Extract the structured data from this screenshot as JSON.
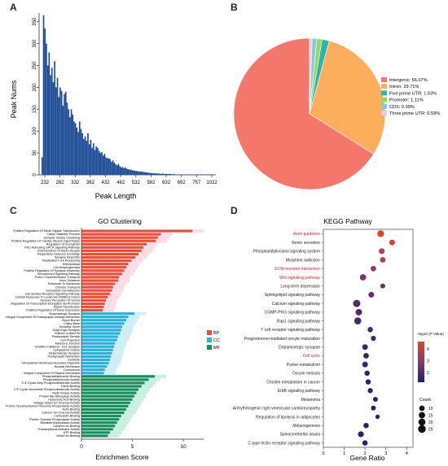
{
  "panel_labels": [
    "A",
    "B",
    "C",
    "D"
  ],
  "chart_data": [
    {
      "type": "bar",
      "panel": "A",
      "xlabel": "Peak Length",
      "ylabel": "Peak Nums",
      "ylim": [
        0,
        370
      ],
      "yticks": [
        0,
        50,
        100,
        150,
        200,
        250,
        300,
        350
      ],
      "xticks": [
        "232",
        "282",
        "332",
        "382",
        "432",
        "482",
        "532",
        "582",
        "632",
        "692",
        "757",
        "1022"
      ],
      "bin_start": 220,
      "bin_width": 4,
      "color": "#1f4e96",
      "values": [
        40,
        365,
        335,
        300,
        250,
        280,
        228,
        245,
        212,
        260,
        200,
        222,
        178,
        200,
        192,
        158,
        185,
        190,
        165,
        150,
        132,
        150,
        138,
        122,
        118,
        108,
        98,
        122,
        105,
        95,
        82,
        88,
        78,
        95,
        70,
        80,
        62,
        72,
        57,
        65,
        62,
        55,
        50,
        52,
        44,
        48,
        40,
        38,
        38,
        36,
        30,
        33,
        28,
        24,
        22,
        25,
        20,
        17,
        18,
        15,
        17,
        14,
        13,
        12,
        12,
        10,
        10,
        9,
        9,
        8,
        8,
        8,
        7,
        7,
        6,
        6,
        5,
        5,
        4,
        4,
        4,
        3,
        4,
        3,
        3,
        3,
        2,
        3,
        2,
        2,
        2,
        2,
        2,
        2,
        1,
        2,
        1,
        1,
        1,
        1,
        1,
        1,
        1,
        1,
        1,
        1,
        1,
        1,
        1,
        1,
        1,
        1,
        1,
        1,
        1,
        1,
        1,
        1,
        1,
        1,
        1,
        1,
        1,
        1
      ]
    },
    {
      "type": "pie",
      "panel": "B",
      "legend_position": "right",
      "slices": [
        {
          "label": "Intergenic: 66.07%",
          "value": 66.07,
          "color": "#f4776b"
        },
        {
          "label": "Intron: 29.71%",
          "value": 29.71,
          "color": "#fcae5d"
        },
        {
          "label": "Five prime UTR: 1.53%",
          "value": 1.53,
          "color": "#2fb5a9"
        },
        {
          "label": "Promoter: 1.11%",
          "value": 1.11,
          "color": "#9bd662"
        },
        {
          "label": "CDS: 0.99%",
          "value": 0.99,
          "color": "#7fcbe0"
        },
        {
          "label": "Three prime UTR: 0.59%",
          "value": 0.59,
          "color": "#f7c7df"
        }
      ]
    },
    {
      "type": "bar",
      "panel": "C",
      "orientation": "horizontal",
      "title": "GO Clustering",
      "xlabel": "Enrichmen Score",
      "xlim": [
        0,
        12
      ],
      "xticks": [
        0,
        5,
        10
      ],
      "legend_position": "right",
      "series": [
        {
          "name": "BP",
          "color": "#e8503a",
          "bands": "#fcdde6",
          "categories": [
            "Positive Regulation Of Small Gtpase Transduction",
            "Camp Catabolic Process",
            "Synaptic Vesicle Clustering",
            "Positive Regulation Of Cardiac Muscle Hypertrophy",
            "Regulation Of Exocytosis",
            "PKC-Activating GPCR Signaling Pathway",
            "Determination Of Adult Lifespan",
            "Respiratory Gaseous Exchange",
            "Synapse Assembly",
            "Replication Fork Processing",
            "Hemopoiesis",
            "Cell Morphogenesis",
            "Positive Regulation Of Synapse Assembly",
            "Smoothened Signaling Pathway",
            "Proton Transmembrane Transport",
            "Axon Guidance",
            "Response To Bacterium",
            "Chloride Transport",
            "Homophilic Cell Adhesion",
            "Cell Surface Receptor Signaling Pathway",
            "Cellular Response To Leukemia Inhibitory Factor",
            "Sensory Perception Of Sound",
            "Regulation Of Transcription Elongation By Promoter",
            "Signal Transduction",
            "Positive Regulation Of Gene Expression"
          ],
          "values": [
            10.9,
            7.8,
            7.5,
            7.3,
            6.4,
            6.1,
            5.9,
            5.6,
            5.3,
            4.9,
            4.6,
            4.4,
            4.2,
            4.0,
            3.7,
            3.6,
            3.3,
            3.1,
            3.0,
            2.8,
            2.6,
            2.4,
            2.3,
            2.2,
            2.1
          ]
        },
        {
          "name": "CC",
          "color": "#2bb0d8",
          "bands": "#cdeef7",
          "categories": [
            "Glutamatergic Synapse",
            "Integral Component Of Postsynaptic Density Membrane",
            "Brush Border",
            "Ciliary Base",
            "Dendritic Spine",
            "Golgi-Ergic Synapse",
            "Clathrin-Coated Pit",
            "Postsynaptic Density",
            "Cell Projection",
            "Adherens Junction",
            "Schaffer Collateral - Ca1 Synapse",
            "Cytoplasmic Vesicle",
            "Glutamatergic Synapse",
            "Postsynaptic Membrane",
            "Centriole",
            "Intracellular Membrane-Bounded Organelle",
            "Nuclear Membrane",
            "Centrosome",
            "Integral Component Of Plasma Membrane"
          ],
          "values": [
            5.2,
            4.6,
            4.4,
            4.2,
            4.0,
            3.9,
            3.8,
            3.6,
            3.5,
            3.3,
            3.2,
            3.1,
            3.0,
            2.9,
            2.8,
            2.7,
            2.5,
            2.3,
            2.2
          ]
        },
        {
          "name": "MF",
          "color": "#1d8c5c",
          "bands": "#c9efe0",
          "categories": [
            "Phosphatidylinositol Binding",
            "Phosphatidylinositol Activity",
            "3',5'-Cyclic-Amp Phosphodiesterase Activity",
            "Camp Binding",
            "3',5'-Cyclic-Nucleotide Phosphodiesterase Activity",
            "Nadh Kinase Activity",
            "Protein Atp-Ribosylase Activity",
            "Hyaluronic Acid Binding",
            "Voltage-Gated Ion Channel Activity",
            "Protein Tyrosine/Serine/Threonine Phosphatase Activity",
            "Actin Binding",
            "Calcium Ion Channel Activity",
            "Calmodulin Binding",
            "Protein Tyrosine Phosphatase Activity",
            "Metalloendopeptidase Activity",
            "Calcium Ion Binding",
            "Transcriptional Activator Activity",
            "ATP Binding",
            "Metal Ion Binding"
          ],
          "values": [
            7.2,
            6.6,
            6.2,
            5.9,
            5.6,
            5.4,
            5.2,
            5.0,
            4.8,
            4.6,
            4.4,
            4.2,
            3.9,
            3.7,
            3.5,
            3.3,
            3.1,
            2.8,
            2.6
          ]
        }
      ]
    },
    {
      "type": "scatter",
      "panel": "D",
      "title": "KEGG Pathway",
      "xlabel": "Gene Ratio",
      "xlim": [
        0,
        4.3
      ],
      "xticks": [
        0,
        1,
        2,
        3,
        4
      ],
      "color_legend_title": "−log10 (P Value)",
      "color_ticks": [
        2,
        3,
        4
      ],
      "size_legend_title": "Count",
      "size_legend": [
        10,
        15,
        20,
        25
      ],
      "points": [
        {
          "pathway": "Axon guidance",
          "x": 2.75,
          "p": 4.6,
          "count": 18,
          "highlight": true
        },
        {
          "pathway": "Renin secretion",
          "x": 3.3,
          "p": 4.4,
          "count": 11,
          "highlight": false
        },
        {
          "pathway": "Phosphatidylinositol signaling system",
          "x": 2.8,
          "p": 3.9,
          "count": 12,
          "highlight": false
        },
        {
          "pathway": "Morphine addiction",
          "x": 2.85,
          "p": 3.7,
          "count": 10,
          "highlight": false
        },
        {
          "pathway": "ECM-receptor interaction",
          "x": 2.4,
          "p": 3.0,
          "count": 10,
          "highlight": true
        },
        {
          "pathway": "Wnt signaling pathway",
          "x": 1.9,
          "p": 2.8,
          "count": 15,
          "highlight": true
        },
        {
          "pathway": "Long-term depression",
          "x": 2.85,
          "p": 2.5,
          "count": 7,
          "highlight": false
        },
        {
          "pathway": "Sphingolipid signaling pathway",
          "x": 2.3,
          "p": 2.3,
          "count": 11,
          "highlight": false
        },
        {
          "pathway": "Calcium signaling pathway",
          "x": 1.6,
          "p": 2.1,
          "count": 22,
          "highlight": false
        },
        {
          "pathway": "CGMP-PKG signaling pathway",
          "x": 1.7,
          "p": 2.0,
          "count": 16,
          "highlight": false
        },
        {
          "pathway": "Rap1 signaling pathway",
          "x": 1.65,
          "p": 1.9,
          "count": 20,
          "highlight": false
        },
        {
          "pathway": "T cell receptor signaling pathway",
          "x": 2.25,
          "p": 1.8,
          "count": 9,
          "highlight": false
        },
        {
          "pathway": "Progesterone-mediated oocyte maturation",
          "x": 2.4,
          "p": 1.75,
          "count": 8,
          "highlight": false
        },
        {
          "pathway": "Dopaminergic synapse",
          "x": 2.0,
          "p": 1.7,
          "count": 11,
          "highlight": false
        },
        {
          "pathway": "Cell cycle",
          "x": 2.05,
          "p": 1.65,
          "count": 10,
          "highlight": true
        },
        {
          "pathway": "Purine metabolism",
          "x": 2.0,
          "p": 1.6,
          "count": 11,
          "highlight": false
        },
        {
          "pathway": "Oocyte meiosis",
          "x": 2.1,
          "p": 1.55,
          "count": 9,
          "highlight": false
        },
        {
          "pathway": "Choline metabolism in cancer",
          "x": 2.15,
          "p": 1.5,
          "count": 9,
          "highlight": false
        },
        {
          "pathway": "ErbB signaling pathway",
          "x": 2.25,
          "p": 1.45,
          "count": 8,
          "highlight": false
        },
        {
          "pathway": "Melanoma",
          "x": 2.5,
          "p": 1.4,
          "count": 7,
          "highlight": false
        },
        {
          "pathway": "Arrhythmogenic right ventricular cardiomyopathy",
          "x": 2.4,
          "p": 1.4,
          "count": 7,
          "highlight": false
        },
        {
          "pathway": "Regulation of lipolysis in adipocytes",
          "x": 2.6,
          "p": 1.35,
          "count": 5,
          "highlight": false
        },
        {
          "pathway": "Melanogenesis",
          "x": 2.05,
          "p": 1.35,
          "count": 9,
          "highlight": false
        },
        {
          "pathway": "Spinocerebellar ataxia",
          "x": 1.8,
          "p": 1.3,
          "count": 12,
          "highlight": false
        },
        {
          "pathway": "C-type lectin receptor signaling pathway",
          "x": 2.0,
          "p": 1.3,
          "count": 9,
          "highlight": false
        }
      ]
    }
  ]
}
